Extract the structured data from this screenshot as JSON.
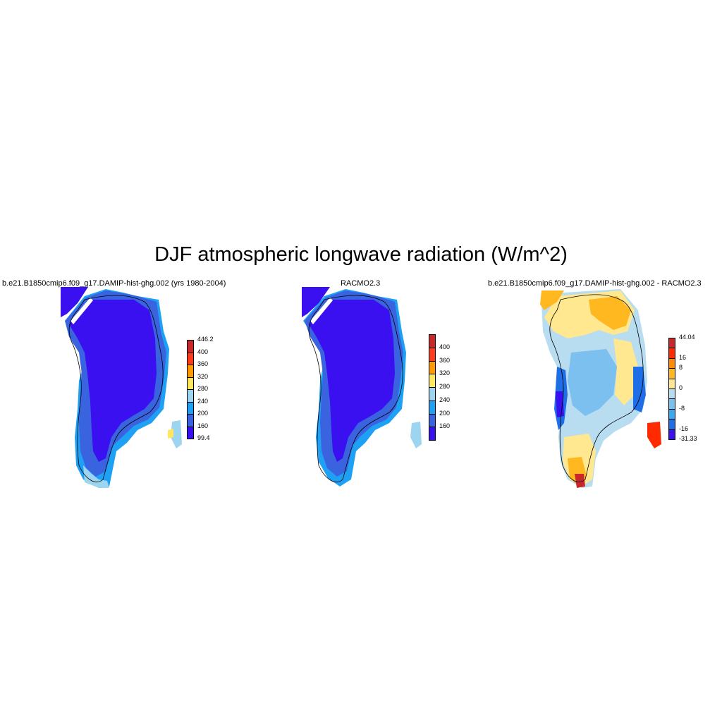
{
  "figure": {
    "title": "DJF atmospheric longwave radiation (W/m^2)"
  },
  "panels": [
    {
      "title": "b.e21.B1850cmip6.f09_g17.DAMIP-hist-ghg.002 (yrs 1980-2004)",
      "colorbar": {
        "labels": [
          "446.2",
          "400",
          "360",
          "320",
          "280",
          "240",
          "200",
          "160",
          "99.4"
        ],
        "colors": [
          "#c8282a",
          "#ff3b1a",
          "#ff9a00",
          "#ffe860",
          "#9dd4f0",
          "#1ea0f5",
          "#3a63e0",
          "#3b10f0"
        ]
      }
    },
    {
      "title": "RACMO2.3",
      "colorbar": {
        "labels": [
          "400",
          "360",
          "320",
          "280",
          "240",
          "200",
          "160"
        ],
        "colors": [
          "#c8282a",
          "#ff3b1a",
          "#ff9a00",
          "#ffe860",
          "#9dd4f0",
          "#1ea0f5",
          "#3a63e0",
          "#3b10f0"
        ]
      }
    },
    {
      "title": "b.e21.B1850cmip6.f09_g17.DAMIP-hist-ghg.002 - RACMO2.3",
      "colorbar": {
        "labels": [
          "44.04",
          "16",
          "8",
          "0",
          "-8",
          "-16",
          "-31.33"
        ],
        "colors": [
          "#c8282a",
          "#ff2a00",
          "#ff8a00",
          "#ffb820",
          "#ffe890",
          "#b8dcf0",
          "#7cc0f0",
          "#3aa8f0",
          "#1e6ee8",
          "#3b10f0"
        ]
      }
    }
  ]
}
